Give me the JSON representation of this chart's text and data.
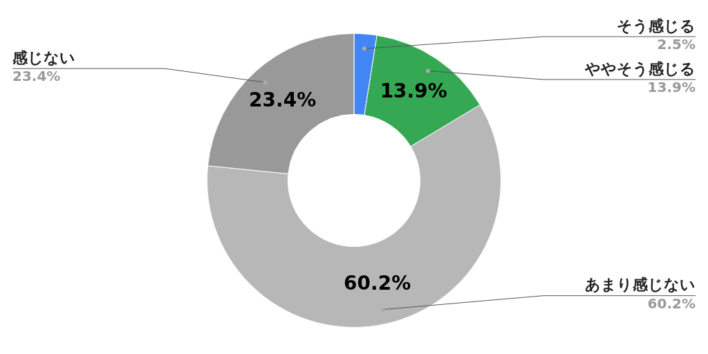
{
  "chart_data": {
    "type": "donut",
    "categories": [
      "そう感じる",
      "ややそう感じる",
      "あまり感じない",
      "感じない"
    ],
    "values": [
      2.5,
      13.9,
      60.2,
      23.4
    ],
    "colors": [
      "#4285f4",
      "#34a853",
      "#b7b7b7",
      "#999999"
    ],
    "value_labels": [
      null,
      "13.9%",
      "60.2%",
      "23.4%"
    ],
    "annotations": [
      "2.5%",
      "13.9%",
      "60.2%",
      "23.4%"
    ],
    "legend": false
  }
}
